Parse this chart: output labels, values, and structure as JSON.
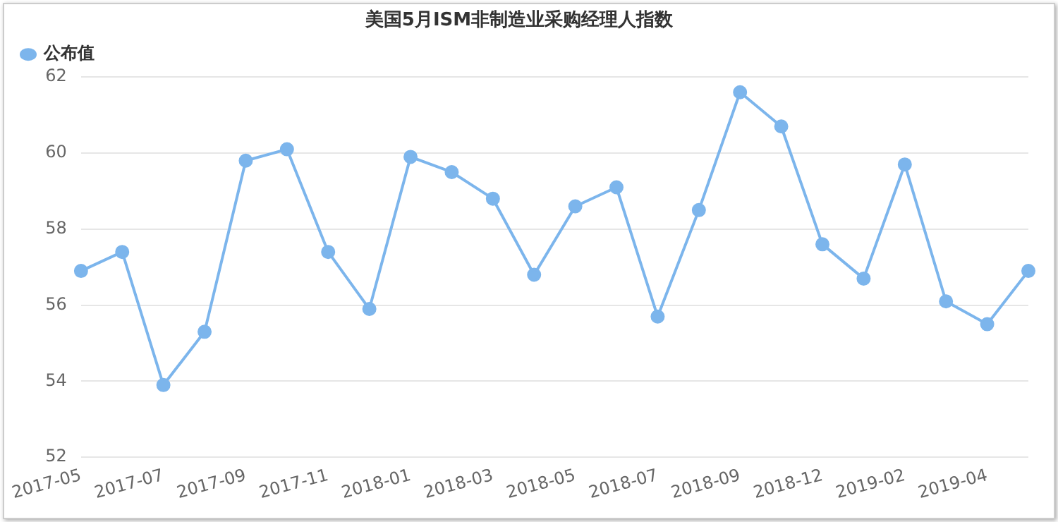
{
  "chart_data": {
    "type": "line",
    "title": "美国5月ISM非制造业采购经理人指数",
    "categories": [
      "2017-05",
      null,
      "2017-07",
      null,
      "2017-09",
      null,
      "2017-11",
      null,
      "2018-01",
      null,
      "2018-03",
      null,
      "2018-05",
      null,
      "2018-07",
      null,
      "2018-09",
      null,
      "2018-12",
      null,
      "2019-02",
      null,
      "2019-04",
      null
    ],
    "series": [
      {
        "name": "公布值",
        "color": "#7cb5ec",
        "values": [
          56.9,
          57.4,
          53.9,
          55.3,
          59.8,
          60.1,
          57.4,
          55.9,
          59.9,
          59.5,
          58.8,
          56.8,
          58.6,
          59.1,
          55.7,
          58.5,
          61.6,
          60.7,
          57.6,
          56.7,
          59.7,
          56.1,
          55.5,
          56.9
        ]
      }
    ],
    "ylim": [
      52,
      62
    ],
    "yticks": [
      52,
      54,
      56,
      58,
      60,
      62
    ],
    "grid": "y",
    "legend": "top left",
    "marker": "circle",
    "line_style": "solid"
  }
}
